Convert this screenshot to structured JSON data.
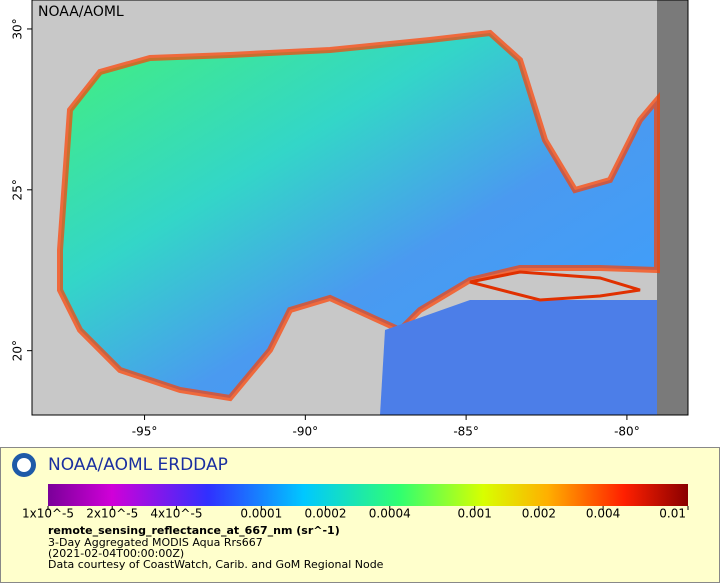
{
  "map": {
    "corner_label": "NOAA/AOML",
    "xlim": [
      -98.5,
      -78.1
    ],
    "ylim": [
      18.0,
      30.9
    ],
    "xticks": [
      {
        "value": -95,
        "label": "-95°"
      },
      {
        "value": -90,
        "label": "-90°"
      },
      {
        "value": -85,
        "label": "-85°"
      },
      {
        "value": -80,
        "label": "-80°"
      }
    ],
    "yticks": [
      {
        "value": 20,
        "label": "20°"
      },
      {
        "value": 25,
        "label": "25°"
      },
      {
        "value": 30,
        "label": "30°"
      }
    ]
  },
  "legend": {
    "brand": "NOAA/AOML ERDDAP",
    "colorbar": {
      "log_scale": true,
      "lim": [
        1e-05,
        0.01
      ],
      "ticks": [
        {
          "value": 1e-05,
          "label": "1x10^-5"
        },
        {
          "value": 2e-05,
          "label": "2x10^-5"
        },
        {
          "value": 4e-05,
          "label": "4x10^-5"
        },
        0.0001,
        0.0002,
        0.0004,
        0.001,
        0.002,
        0.004,
        0.01
      ]
    },
    "variable": "remote_sensing_reflectance_at_667_nm (sr^-1)",
    "dataset": "3-Day Aggregated MODIS Aqua Rrs667",
    "time": "(2021-02-04T00:00:00Z)",
    "credit": "Data courtesy of CoastWatch, Carib. and GoM Regional Node"
  }
}
